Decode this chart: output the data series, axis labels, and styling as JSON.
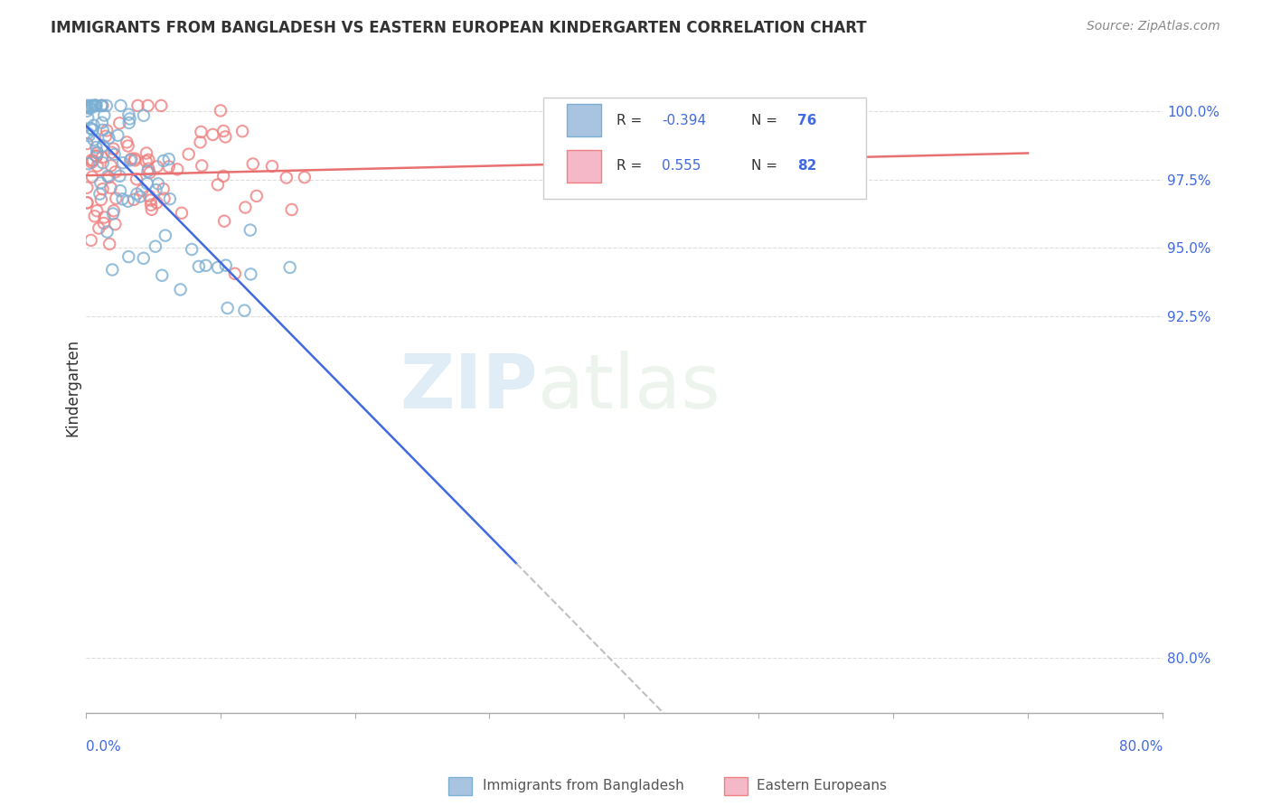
{
  "title": "IMMIGRANTS FROM BANGLADESH VS EASTERN EUROPEAN KINDERGARTEN CORRELATION CHART",
  "source": "Source: ZipAtlas.com",
  "ylabel": "Kindergarten",
  "ytick_labels": [
    "80.0%",
    "92.5%",
    "95.0%",
    "97.5%",
    "100.0%"
  ],
  "ytick_values": [
    0.8,
    0.925,
    0.95,
    0.975,
    1.0
  ],
  "xlim": [
    0.0,
    0.8
  ],
  "ylim": [
    0.78,
    1.018
  ],
  "watermark_zip": "ZIP",
  "watermark_atlas": "atlas",
  "bangladesh_color": "#7bafd4",
  "eastern_color": "#f08080",
  "trendline_bangladesh_color": "#4169e1",
  "trendline_eastern_color": "#e87070",
  "trendline_dash_color": "#c0c0c0",
  "legend_r1": "-0.394",
  "legend_n1": "76",
  "legend_r2": "0.555",
  "legend_n2": "82",
  "legend_color1": "#a8c4e0",
  "legend_color2": "#f4b8c8",
  "legend_edge1": "#7bafd4",
  "legend_edge2": "#f08080"
}
